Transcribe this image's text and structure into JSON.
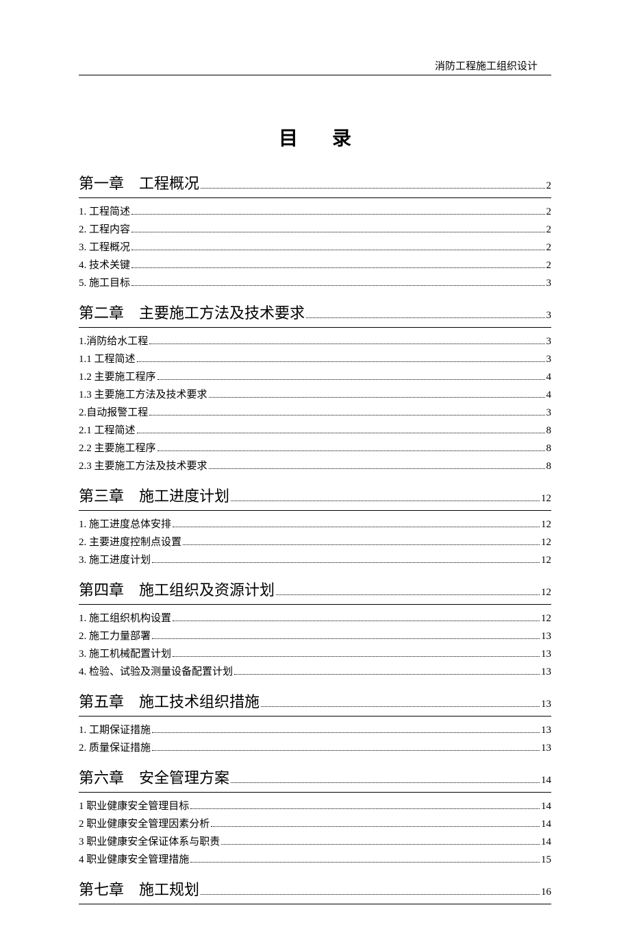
{
  "header": "消防工程施工组织设计",
  "title": "目录",
  "chapters": [
    {
      "label": "第一章",
      "title": "工程概况",
      "page": "2",
      "entries": [
        {
          "label": "1. 工程简述",
          "page": "2"
        },
        {
          "label": "2. 工程内容",
          "page": "2"
        },
        {
          "label": "3. 工程概况",
          "page": "2"
        },
        {
          "label": "4. 技术关键",
          "page": "2"
        },
        {
          "label": "5. 施工目标",
          "page": "3"
        }
      ]
    },
    {
      "label": "第二章",
      "title": "主要施工方法及技术要求",
      "page": "3",
      "entries": [
        {
          "label": "1.消防给水工程",
          "page": "3"
        },
        {
          "label": "1.1 工程简述",
          "page": "3"
        },
        {
          "label": "1.2 主要施工程序",
          "page": "4"
        },
        {
          "label": "1.3 主要施工方法及技术要求",
          "page": "4"
        },
        {
          "label": "2.自动报警工程",
          "page": "3"
        },
        {
          "label": "2.1 工程简述",
          "page": "8"
        },
        {
          "label": "2.2 主要施工程序",
          "page": "8"
        },
        {
          "label": "2.3 主要施工方法及技术要求",
          "page": "8"
        }
      ]
    },
    {
      "label": "第三章",
      "title": "施工进度计划",
      "page": "12",
      "entries": [
        {
          "label": "1. 施工进度总体安排",
          "page": "12"
        },
        {
          "label": "2. 主要进度控制点设置",
          "page": "12"
        },
        {
          "label": "3. 施工进度计划",
          "page": "12"
        }
      ]
    },
    {
      "label": "第四章",
      "title": "施工组织及资源计划",
      "page": "12",
      "entries": [
        {
          "label": "1. 施工组织机构设置",
          "page": "12"
        },
        {
          "label": "2. 施工力量部署",
          "page": "13"
        },
        {
          "label": "3. 施工机械配置计划",
          "page": "13"
        },
        {
          "label": "4. 检验、试验及测量设备配置计划",
          "page": "13"
        }
      ]
    },
    {
      "label": "第五章",
      "title": "施工技术组织措施",
      "page": "13",
      "entries": [
        {
          "label": "1. 工期保证措施",
          "page": "13"
        },
        {
          "label": "2. 质量保证措施",
          "page": "13"
        }
      ]
    },
    {
      "label": "第六章",
      "title": "安全管理方案",
      "page": "14",
      "entries": [
        {
          "label": "1 职业健康安全管理目标",
          "page": "14"
        },
        {
          "label": "2 职业健康安全管理因素分析",
          "page": "14"
        },
        {
          "label": "3 职业健康安全保证体系与职责",
          "page": "14"
        },
        {
          "label": "4 职业健康安全管理措施",
          "page": "15"
        }
      ]
    },
    {
      "label": "第七章",
      "title": "施工规划",
      "page": "16",
      "entries": []
    }
  ]
}
